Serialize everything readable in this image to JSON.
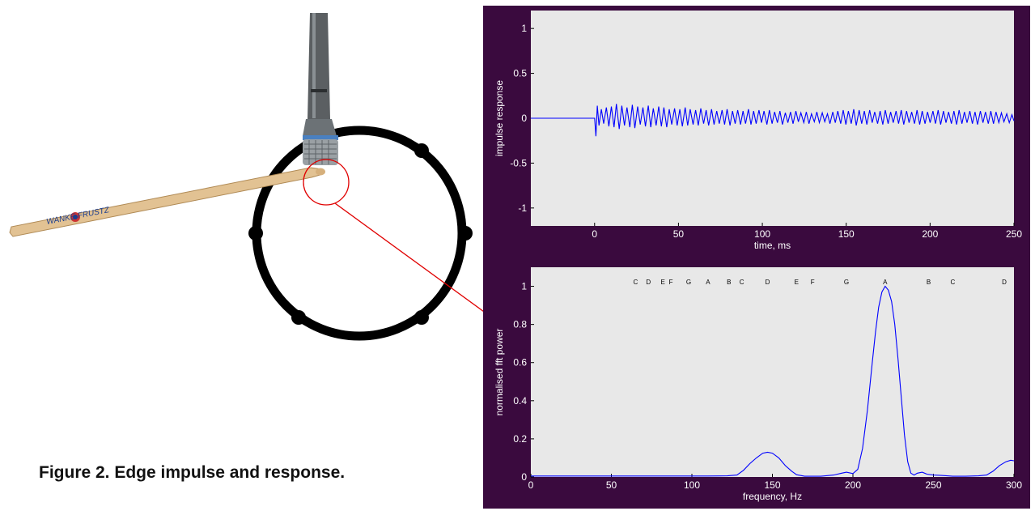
{
  "caption": "Figure 2. Edge impulse and response.",
  "drumstick_text": "WANKE FRUSTZ",
  "colors": {
    "panel": "#3a0a3e",
    "axes_bg": "#e8e8e8",
    "trace": "#0000ff",
    "ring": "#000000",
    "highlight": "#e00000"
  },
  "chart_data": [
    {
      "type": "line",
      "title": "",
      "xlabel": "time, ms",
      "ylabel": "impulse response",
      "xlim": [
        -38,
        250
      ],
      "ylim": [
        -1.2,
        1.2
      ],
      "xticks": [
        0,
        50,
        100,
        150,
        200,
        250
      ],
      "yticks": [
        -1,
        -0.5,
        0,
        0.5,
        1
      ],
      "xticklabels": [
        "0",
        "50",
        "100",
        "150",
        "200",
        "250"
      ],
      "yticklabels": [
        "-1",
        "-0.5",
        "0",
        "0.5",
        "1"
      ],
      "grid": false,
      "series": [
        {
          "x": [
            -38,
            0,
            0.8,
            1.6,
            2.6,
            4,
            5.4,
            7,
            8.5,
            10,
            11.6,
            13,
            14.7,
            16.2,
            17.8,
            19.3,
            21,
            22.5,
            24,
            25.7,
            27.2,
            28.8,
            30.3,
            32,
            33.5,
            35,
            36.7,
            38.2,
            39.8,
            41.3,
            43,
            44.5,
            46,
            47.7,
            49.2,
            50.8,
            52.3,
            54,
            55.5,
            57,
            58.7,
            60.2,
            61.8,
            63.3,
            65,
            66.5,
            68,
            69.7,
            71.2,
            72.8,
            74.3,
            76,
            77.5,
            79,
            80.7,
            82.2,
            83.8,
            85.3,
            87,
            88.5,
            90,
            91.7,
            93.2,
            94.8,
            96.3,
            98,
            99.5,
            101,
            102.7,
            104.2,
            105.8,
            107.3,
            109,
            110.5,
            112,
            113.7,
            115.2,
            116.8,
            118.3,
            120,
            121.5,
            123,
            124.7,
            126.2,
            127.8,
            129.3,
            131,
            132.5,
            134,
            135.7,
            137.2,
            138.8,
            140.3,
            142,
            143.5,
            145,
            146.7,
            148.2,
            149.8,
            151.3,
            153,
            154.5,
            156,
            157.7,
            159.2,
            160.8,
            162.3,
            164,
            165.5,
            167,
            168.7,
            170.2,
            171.8,
            173.3,
            175,
            176.5,
            178,
            179.7,
            181.2,
            182.8,
            184.3,
            186,
            187.5,
            189,
            190.7,
            192.2,
            193.8,
            195.3,
            197,
            198.5,
            200,
            201.7,
            203.2,
            204.8,
            206.3,
            208,
            209.5,
            211,
            212.7,
            214.2,
            215.8,
            217.3,
            219,
            220.5,
            222,
            223.7,
            225.2,
            226.8,
            228.3,
            230,
            231.5,
            233,
            234.7,
            236.2,
            237.8,
            239.3,
            241,
            242.5,
            244,
            245.7,
            247.2,
            248.8,
            250
          ],
          "y": [
            0,
            0,
            -0.2,
            0.14,
            -0.08,
            0.1,
            -0.06,
            0.12,
            -0.09,
            0.13,
            -0.1,
            0.16,
            -0.12,
            0.14,
            -0.08,
            0.12,
            -0.1,
            0.15,
            -0.11,
            0.13,
            -0.07,
            0.12,
            -0.09,
            0.14,
            -0.1,
            0.11,
            -0.08,
            0.13,
            -0.09,
            0.12,
            -0.1,
            0.1,
            -0.07,
            0.11,
            -0.08,
            0.1,
            -0.09,
            0.12,
            -0.08,
            0.1,
            -0.07,
            0.09,
            -0.08,
            0.11,
            -0.06,
            0.09,
            -0.08,
            0.1,
            -0.07,
            0.08,
            -0.06,
            0.09,
            -0.07,
            0.1,
            -0.08,
            0.08,
            -0.06,
            0.09,
            -0.07,
            0.08,
            -0.06,
            0.1,
            -0.07,
            0.08,
            -0.06,
            0.09,
            -0.05,
            0.08,
            -0.07,
            0.09,
            -0.06,
            0.07,
            -0.05,
            0.08,
            -0.07,
            0.06,
            -0.05,
            0.07,
            -0.06,
            0.08,
            -0.04,
            0.06,
            -0.05,
            0.07,
            -0.06,
            0.05,
            -0.04,
            0.07,
            -0.05,
            0.06,
            -0.04,
            0.05,
            -0.06,
            0.07,
            -0.05,
            0.08,
            -0.06,
            0.09,
            -0.07,
            0.08,
            -0.06,
            0.1,
            -0.08,
            0.09,
            -0.06,
            0.08,
            -0.07,
            0.09,
            -0.05,
            0.07,
            -0.06,
            0.08,
            -0.07,
            0.09,
            -0.06,
            0.07,
            -0.05,
            0.08,
            -0.06,
            0.09,
            -0.07,
            0.08,
            -0.05,
            0.07,
            -0.06,
            0.09,
            -0.07,
            0.08,
            -0.06,
            0.07,
            -0.05,
            0.08,
            -0.06,
            0.09,
            -0.07,
            0.08,
            -0.05,
            0.07,
            -0.06,
            0.08,
            -0.07,
            0.09,
            -0.06,
            0.07,
            -0.05,
            0.08,
            -0.06,
            0.07,
            -0.07,
            0.08,
            -0.05,
            0.07,
            -0.06,
            0.08,
            -0.06,
            0.07,
            -0.05,
            0.06,
            -0.04,
            0.05,
            -0.05,
            0.04,
            -0.03
          ]
        }
      ]
    },
    {
      "type": "line",
      "title": "",
      "xlabel": "frequency, Hz",
      "ylabel": "normalised fft power",
      "xlim": [
        0,
        300
      ],
      "ylim": [
        0,
        1.1
      ],
      "xticks": [
        0,
        50,
        100,
        150,
        200,
        250,
        300
      ],
      "yticks": [
        0,
        0.2,
        0.4,
        0.6,
        0.8,
        1
      ],
      "xticklabels": [
        "0",
        "50",
        "100",
        "150",
        "200",
        "250",
        "300"
      ],
      "yticklabels": [
        "0",
        "0.2",
        "0.4",
        "0.6",
        "0.8",
        "1"
      ],
      "grid": false,
      "annotations": [
        {
          "text": "C",
          "x": 65
        },
        {
          "text": "D",
          "x": 73
        },
        {
          "text": "E",
          "x": 82
        },
        {
          "text": "F",
          "x": 87
        },
        {
          "text": "G",
          "x": 98
        },
        {
          "text": "A",
          "x": 110
        },
        {
          "text": "B",
          "x": 123
        },
        {
          "text": "C",
          "x": 131
        },
        {
          "text": "D",
          "x": 147
        },
        {
          "text": "E",
          "x": 165
        },
        {
          "text": "F",
          "x": 175
        },
        {
          "text": "G",
          "x": 196
        },
        {
          "text": "A",
          "x": 220
        },
        {
          "text": "B",
          "x": 247
        },
        {
          "text": "C",
          "x": 262
        },
        {
          "text": "D",
          "x": 294
        }
      ],
      "series": [
        {
          "x": [
            0,
            40,
            80,
            110,
            122,
            128,
            132,
            136,
            140,
            144,
            147,
            150,
            154,
            158,
            162,
            165,
            170,
            180,
            188,
            193,
            196,
            200,
            203,
            206,
            209,
            212,
            214,
            216,
            218,
            220,
            222,
            224,
            226,
            228,
            230,
            232,
            234,
            236,
            238,
            240,
            243,
            246,
            250,
            255,
            262,
            270,
            278,
            283,
            287,
            291,
            295,
            298,
            300
          ],
          "y": [
            0.005,
            0.005,
            0.005,
            0.005,
            0.006,
            0.01,
            0.035,
            0.07,
            0.1,
            0.125,
            0.13,
            0.125,
            0.1,
            0.06,
            0.03,
            0.012,
            0.004,
            0.004,
            0.01,
            0.02,
            0.025,
            0.018,
            0.04,
            0.15,
            0.35,
            0.6,
            0.76,
            0.89,
            0.97,
            1.0,
            0.98,
            0.92,
            0.8,
            0.62,
            0.42,
            0.22,
            0.08,
            0.02,
            0.01,
            0.02,
            0.025,
            0.015,
            0.01,
            0.008,
            0.004,
            0.004,
            0.006,
            0.01,
            0.03,
            0.06,
            0.08,
            0.088,
            0.085
          ]
        }
      ]
    }
  ]
}
